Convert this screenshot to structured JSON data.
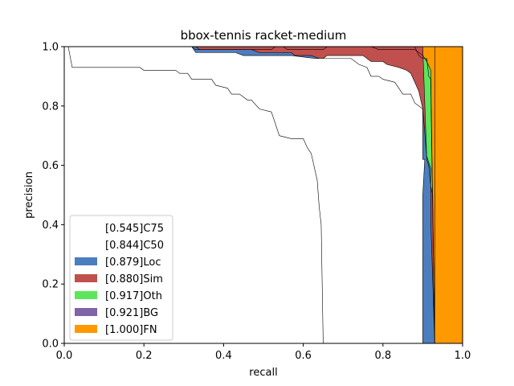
{
  "chart_data": {
    "type": "area",
    "title": "bbox-tennis racket-medium",
    "xlabel": "recall",
    "ylabel": "precision",
    "xlim": [
      0.0,
      1.0
    ],
    "ylim": [
      0.0,
      1.0
    ],
    "xticks": [
      "0.0",
      "0.2",
      "0.4",
      "0.6",
      "0.8",
      "1.0"
    ],
    "yticks": [
      "0.0",
      "0.2",
      "0.4",
      "0.6",
      "0.8",
      "1.0"
    ],
    "grid": false,
    "legend_position": "lower-left",
    "series": [
      {
        "name": "[0.545]C75",
        "color": "#ffffff",
        "points": [
          [
            0.0,
            1.0
          ],
          [
            0.01,
            1.0
          ],
          [
            0.02,
            0.93
          ],
          [
            0.19,
            0.93
          ],
          [
            0.2,
            0.92
          ],
          [
            0.28,
            0.92
          ],
          [
            0.29,
            0.91
          ],
          [
            0.31,
            0.91
          ],
          [
            0.32,
            0.89
          ],
          [
            0.37,
            0.89
          ],
          [
            0.38,
            0.87
          ],
          [
            0.41,
            0.86
          ],
          [
            0.42,
            0.84
          ],
          [
            0.44,
            0.84
          ],
          [
            0.46,
            0.82
          ],
          [
            0.47,
            0.82
          ],
          [
            0.49,
            0.79
          ],
          [
            0.52,
            0.78
          ],
          [
            0.54,
            0.7
          ],
          [
            0.57,
            0.69
          ],
          [
            0.6,
            0.69
          ],
          [
            0.61,
            0.66
          ],
          [
            0.62,
            0.64
          ],
          [
            0.63,
            0.58
          ],
          [
            0.635,
            0.55
          ],
          [
            0.64,
            0.46
          ],
          [
            0.645,
            0.4
          ],
          [
            0.65,
            0.0
          ]
        ]
      },
      {
        "name": "[0.844]C50",
        "color": "#ffffff",
        "points": [
          [
            0.0,
            1.0
          ],
          [
            0.32,
            1.0
          ],
          [
            0.33,
            0.98
          ],
          [
            0.43,
            0.98
          ],
          [
            0.45,
            0.97
          ],
          [
            0.56,
            0.97
          ],
          [
            0.57,
            0.97
          ],
          [
            0.63,
            0.96
          ],
          [
            0.65,
            0.96
          ],
          [
            0.66,
            0.97
          ],
          [
            0.75,
            0.97
          ],
          [
            0.77,
            0.95
          ],
          [
            0.8,
            0.95
          ],
          [
            0.81,
            0.94
          ],
          [
            0.84,
            0.93
          ],
          [
            0.86,
            0.92
          ],
          [
            0.87,
            0.91
          ],
          [
            0.88,
            0.88
          ],
          [
            0.89,
            0.85
          ],
          [
            0.9,
            0.79
          ],
          [
            0.9,
            0.62
          ],
          [
            0.905,
            0.62
          ],
          [
            0.9,
            0.5
          ],
          [
            0.9,
            0.5
          ],
          [
            0.9,
            0.0
          ]
        ]
      },
      {
        "name": "[0.879]Loc",
        "color": "#4c7ebf",
        "points": [
          [
            0.0,
            1.0
          ],
          [
            0.33,
            1.0
          ],
          [
            0.34,
            0.99
          ],
          [
            0.47,
            0.99
          ],
          [
            0.49,
            0.98
          ],
          [
            0.57,
            0.98
          ],
          [
            0.58,
            0.97
          ],
          [
            0.62,
            0.97
          ],
          [
            0.64,
            0.96
          ],
          [
            0.72,
            0.96
          ],
          [
            0.74,
            0.94
          ],
          [
            0.76,
            0.93
          ],
          [
            0.77,
            0.9
          ],
          [
            0.79,
            0.9
          ],
          [
            0.8,
            0.89
          ],
          [
            0.83,
            0.88
          ],
          [
            0.85,
            0.84
          ],
          [
            0.87,
            0.84
          ],
          [
            0.88,
            0.81
          ],
          [
            0.89,
            0.8
          ],
          [
            0.9,
            0.79
          ],
          [
            0.91,
            0.63
          ],
          [
            0.915,
            0.61
          ],
          [
            0.92,
            0.59
          ],
          [
            0.92,
            0.52
          ],
          [
            0.92,
            0.42
          ],
          [
            0.93,
            0.0
          ]
        ]
      },
      {
        "name": "[0.880]Sim",
        "color": "#c0504d",
        "points": [
          [
            0.0,
            1.0
          ],
          [
            0.9,
            1.0
          ],
          [
            0.91,
            0.62
          ],
          [
            0.915,
            0.6
          ],
          [
            0.92,
            0.53
          ],
          [
            0.925,
            0.5
          ],
          [
            0.93,
            0.0
          ]
        ]
      },
      {
        "name": "[0.917]Oth",
        "color": "#5ce65c",
        "points": [
          [
            0.0,
            1.0
          ],
          [
            0.32,
            1.0
          ],
          [
            0.33,
            0.99
          ],
          [
            0.52,
            0.99
          ],
          [
            0.53,
            1.0
          ],
          [
            0.55,
            1.0
          ],
          [
            0.56,
            0.99
          ],
          [
            0.65,
            0.99
          ],
          [
            0.66,
            1.0
          ],
          [
            0.72,
            1.0
          ],
          [
            0.73,
            1.0
          ],
          [
            0.77,
            1.0
          ],
          [
            0.79,
            0.99
          ],
          [
            0.8,
            0.99
          ],
          [
            0.82,
            0.99
          ],
          [
            0.84,
            0.99
          ],
          [
            0.86,
            0.99
          ],
          [
            0.88,
            0.99
          ],
          [
            0.9,
            0.97
          ],
          [
            0.91,
            0.95
          ],
          [
            0.92,
            0.92
          ],
          [
            0.93,
            0.0
          ]
        ]
      },
      {
        "name": "[0.921]BG",
        "color": "#7f64a8",
        "points": [
          [
            0.0,
            1.0
          ],
          [
            0.88,
            1.0
          ],
          [
            0.89,
            0.97
          ],
          [
            0.9,
            0.96
          ],
          [
            0.91,
            0.96
          ],
          [
            0.915,
            0.9
          ],
          [
            0.92,
            0.89
          ],
          [
            0.92,
            0.88
          ],
          [
            0.93,
            0.0
          ]
        ]
      },
      {
        "name": "[1.000]FN",
        "color": "#ff9900",
        "points": [
          [
            0.0,
            1.0
          ],
          [
            0.93,
            1.0
          ],
          [
            0.93,
            0.0
          ]
        ]
      }
    ]
  }
}
